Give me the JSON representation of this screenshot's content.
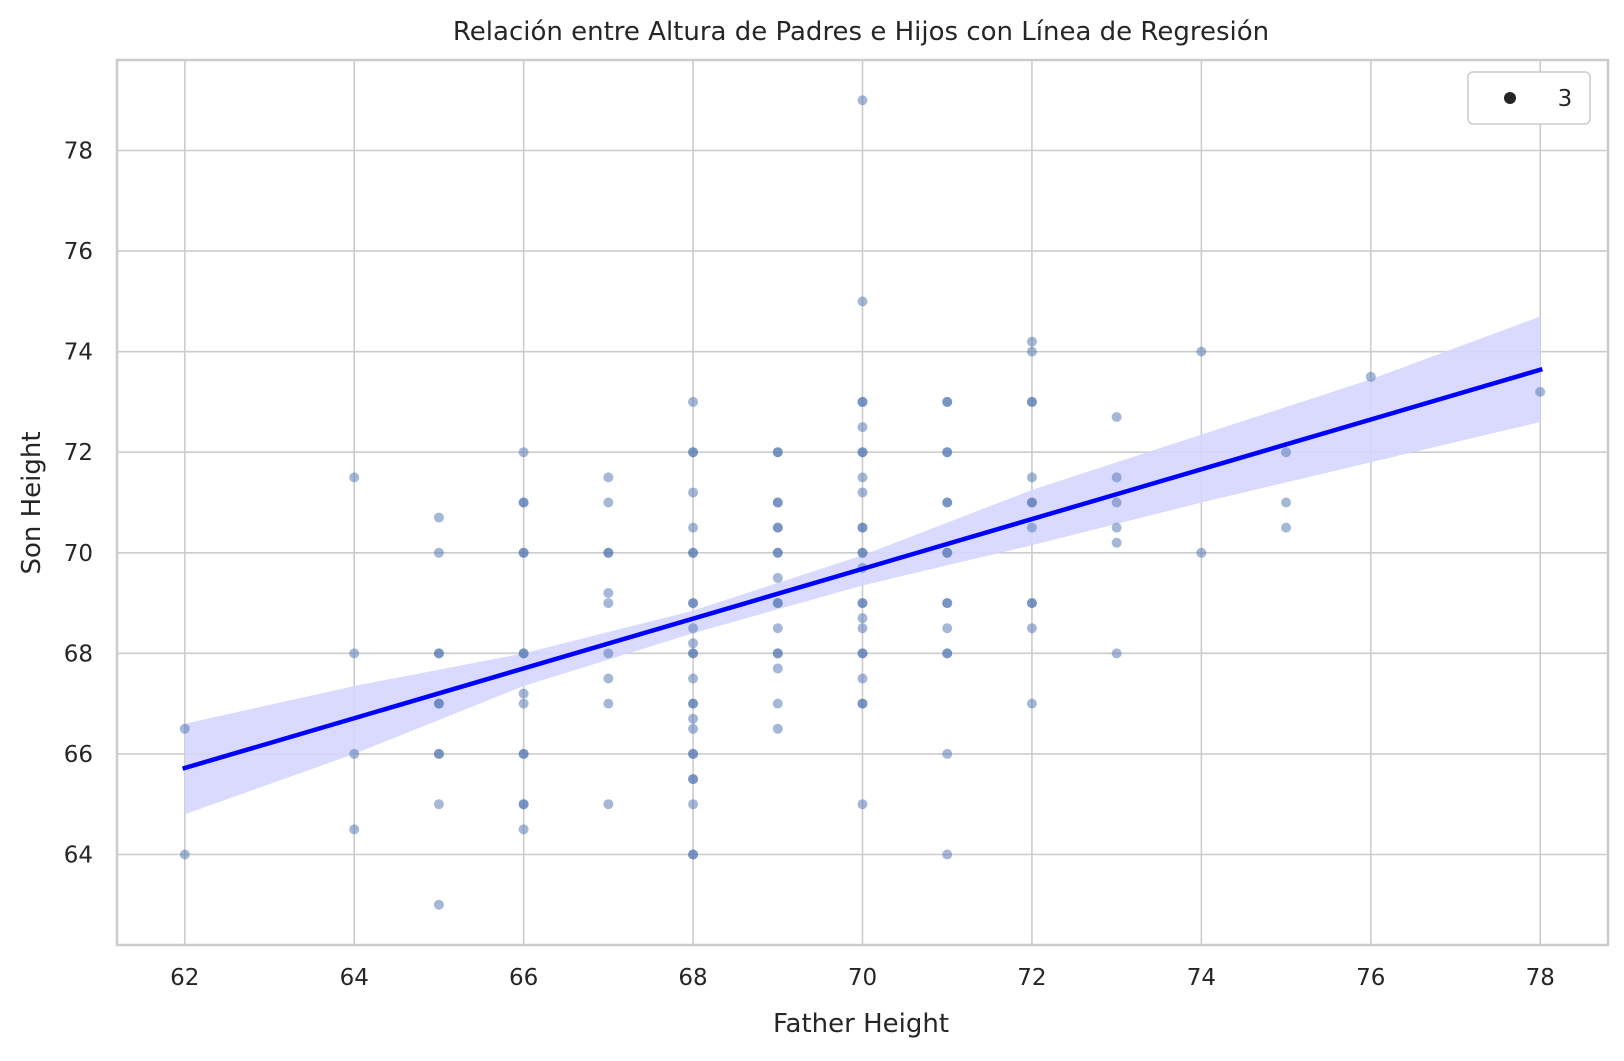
{
  "chart_data": {
    "type": "scatter",
    "title": "Relación entre Altura de Padres e Hijos con Línea de Regresión",
    "xlabel": "Father Height",
    "ylabel": "Son Height",
    "xlim": [
      61.2,
      78.8
    ],
    "ylim": [
      62.2,
      79.8
    ],
    "xticks": [
      62,
      64,
      66,
      68,
      70,
      72,
      74,
      76,
      78
    ],
    "yticks": [
      64,
      66,
      68,
      70,
      72,
      74,
      76,
      78
    ],
    "grid": true,
    "legend": {
      "position": "top-right",
      "entries": [
        {
          "label": "3"
        }
      ]
    },
    "colors": {
      "points": "#4c72b0",
      "regression_line": "#0000ff",
      "confidence_band": "#d6d6ff",
      "grid": "#cccccc"
    },
    "points": [
      [
        62,
        66.5
      ],
      [
        62,
        64
      ],
      [
        64,
        71.5
      ],
      [
        64,
        68
      ],
      [
        64,
        66
      ],
      [
        64,
        64.5
      ],
      [
        65,
        70.7
      ],
      [
        65,
        70
      ],
      [
        65,
        68
      ],
      [
        65,
        68
      ],
      [
        65,
        67
      ],
      [
        65,
        67
      ],
      [
        65,
        66
      ],
      [
        65,
        66
      ],
      [
        65,
        65
      ],
      [
        65,
        63
      ],
      [
        66,
        72
      ],
      [
        66,
        71
      ],
      [
        66,
        71
      ],
      [
        66,
        70
      ],
      [
        66,
        70
      ],
      [
        66,
        68
      ],
      [
        66,
        68
      ],
      [
        66,
        67.2
      ],
      [
        66,
        67
      ],
      [
        66,
        66
      ],
      [
        66,
        66
      ],
      [
        66,
        65
      ],
      [
        66,
        65
      ],
      [
        66,
        64.5
      ],
      [
        67,
        71.5
      ],
      [
        67,
        71
      ],
      [
        67,
        70
      ],
      [
        67,
        70
      ],
      [
        67,
        69.2
      ],
      [
        67,
        69
      ],
      [
        67,
        68
      ],
      [
        67,
        67.5
      ],
      [
        67,
        67
      ],
      [
        67,
        65
      ],
      [
        68,
        73
      ],
      [
        68,
        72
      ],
      [
        68,
        72
      ],
      [
        68,
        71.2
      ],
      [
        68,
        70.5
      ],
      [
        68,
        70
      ],
      [
        68,
        70
      ],
      [
        68,
        69
      ],
      [
        68,
        69
      ],
      [
        68,
        68.5
      ],
      [
        68,
        68.2
      ],
      [
        68,
        68
      ],
      [
        68,
        68
      ],
      [
        68,
        67.5
      ],
      [
        68,
        67
      ],
      [
        68,
        67
      ],
      [
        68,
        66.7
      ],
      [
        68,
        66.5
      ],
      [
        68,
        66
      ],
      [
        68,
        66
      ],
      [
        68,
        65.5
      ],
      [
        68,
        65.5
      ],
      [
        68,
        65
      ],
      [
        68,
        64
      ],
      [
        68,
        64
      ],
      [
        69,
        72
      ],
      [
        69,
        72
      ],
      [
        69,
        71
      ],
      [
        69,
        71
      ],
      [
        69,
        70.5
      ],
      [
        69,
        70.5
      ],
      [
        69,
        70
      ],
      [
        69,
        70
      ],
      [
        69,
        69.5
      ],
      [
        69,
        69
      ],
      [
        69,
        69
      ],
      [
        69,
        68.5
      ],
      [
        69,
        68
      ],
      [
        69,
        68
      ],
      [
        69,
        67.7
      ],
      [
        69,
        67
      ],
      [
        69,
        66.5
      ],
      [
        70,
        79
      ],
      [
        70,
        75
      ],
      [
        70,
        73
      ],
      [
        70,
        73
      ],
      [
        70,
        72.5
      ],
      [
        70,
        72
      ],
      [
        70,
        72
      ],
      [
        70,
        71.5
      ],
      [
        70,
        71.2
      ],
      [
        70,
        70.5
      ],
      [
        70,
        70.5
      ],
      [
        70,
        70
      ],
      [
        70,
        70
      ],
      [
        70,
        69.7
      ],
      [
        70,
        69
      ],
      [
        70,
        69
      ],
      [
        70,
        68.7
      ],
      [
        70,
        68.5
      ],
      [
        70,
        68
      ],
      [
        70,
        68
      ],
      [
        70,
        67.5
      ],
      [
        70,
        67
      ],
      [
        70,
        67
      ],
      [
        70,
        65
      ],
      [
        71,
        73
      ],
      [
        71,
        73
      ],
      [
        71,
        72
      ],
      [
        71,
        72
      ],
      [
        71,
        71
      ],
      [
        71,
        71
      ],
      [
        71,
        70
      ],
      [
        71,
        70
      ],
      [
        71,
        69
      ],
      [
        71,
        69
      ],
      [
        71,
        68.5
      ],
      [
        71,
        68
      ],
      [
        71,
        68
      ],
      [
        71,
        66
      ],
      [
        71,
        64
      ],
      [
        72,
        74.2
      ],
      [
        72,
        74
      ],
      [
        72,
        73
      ],
      [
        72,
        73
      ],
      [
        72,
        71.5
      ],
      [
        72,
        71
      ],
      [
        72,
        71
      ],
      [
        72,
        70.5
      ],
      [
        72,
        69
      ],
      [
        72,
        69
      ],
      [
        72,
        68.5
      ],
      [
        72,
        67
      ],
      [
        73,
        72.7
      ],
      [
        73,
        71.5
      ],
      [
        73,
        71
      ],
      [
        73,
        70.5
      ],
      [
        73,
        70.2
      ],
      [
        73,
        68
      ],
      [
        74,
        74
      ],
      [
        74,
        70
      ],
      [
        75,
        72
      ],
      [
        75,
        71
      ],
      [
        75,
        70.5
      ],
      [
        76,
        73.5
      ],
      [
        78,
        73.2
      ]
    ],
    "regression": {
      "x": [
        62,
        78
      ],
      "y": [
        65.72,
        73.64
      ]
    },
    "confidence_band": {
      "x": [
        62,
        64,
        66,
        68,
        70,
        72,
        74,
        76,
        78
      ],
      "upper": [
        66.6,
        67.35,
        68.0,
        68.85,
        69.95,
        71.25,
        72.35,
        73.45,
        74.7
      ],
      "lower": [
        64.8,
        66.0,
        67.35,
        68.4,
        69.35,
        70.15,
        71.0,
        71.8,
        72.6
      ]
    }
  }
}
